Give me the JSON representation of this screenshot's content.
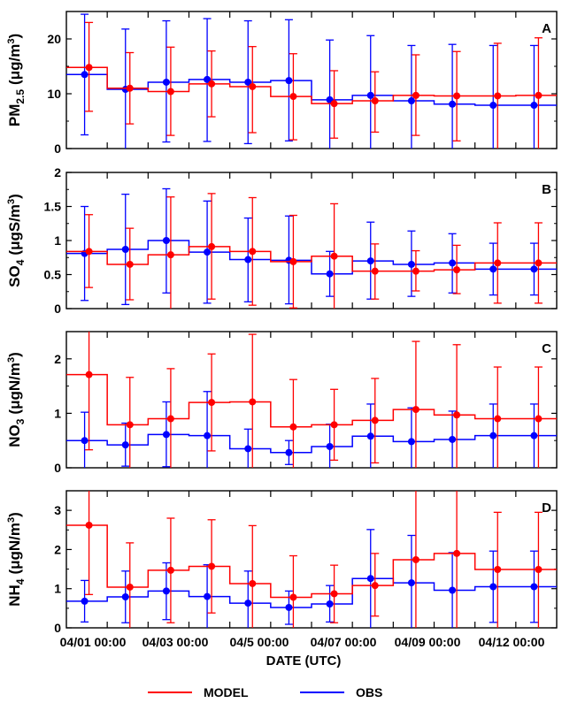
{
  "chart_data": {
    "type": "line",
    "xlabel": "DATE (UTC)",
    "x_tick_labels": [
      "04/01 00:00",
      "04/03 00:00",
      "04/5 00:00",
      "04/07 00:00",
      "04/09 00:00",
      "04/12 00:00"
    ],
    "legend": {
      "position": "bottom-center",
      "entries": [
        "MODEL",
        "OBS"
      ]
    },
    "colors": {
      "MODEL": "#ff0000",
      "OBS": "#0000ff"
    },
    "panels": [
      {
        "letter": "A",
        "ylabel": {
          "main": "PM",
          "sub": "2.5",
          "rest": "(μg/m",
          "sup": "3",
          "end": ")"
        },
        "ylim": [
          0,
          25
        ],
        "yticks": [
          0,
          10,
          20
        ],
        "yticklabels": [
          "0",
          "10",
          "20"
        ],
        "series": [
          {
            "name": "MODEL",
            "values": [
              14.8,
              11.0,
              10.4,
              11.8,
              11.3,
              9.5,
              8.2,
              8.7,
              9.7,
              9.6,
              9.6,
              9.7
            ],
            "low": [
              6.8,
              4.5,
              2.4,
              5.8,
              2.9,
              1.6,
              1.9,
              3.0,
              2.4,
              1.4,
              0.0,
              0.0
            ],
            "high": [
              23.0,
              17.5,
              18.5,
              17.8,
              18.6,
              17.3,
              14.2,
              14.0,
              17.1,
              17.7,
              19.2,
              20.2
            ]
          },
          {
            "name": "OBS",
            "values": [
              13.5,
              10.8,
              12.1,
              12.6,
              12.1,
              12.4,
              8.9,
              9.7,
              8.7,
              8.1,
              7.9,
              7.9
            ],
            "low": [
              2.5,
              0.0,
              1.2,
              1.3,
              0.9,
              1.4,
              0.0,
              0.0,
              0.0,
              0.0,
              0.0,
              0.0
            ],
            "high": [
              24.5,
              21.8,
              23.3,
              23.7,
              23.3,
              23.5,
              19.8,
              20.6,
              18.8,
              19.0,
              18.8,
              18.8
            ]
          }
        ]
      },
      {
        "letter": "B",
        "ylabel": {
          "main": "SO",
          "sub": "4",
          "rest": "(μgS/m",
          "sup": "3",
          "end": ")"
        },
        "ylim": [
          0,
          2
        ],
        "yticks": [
          0,
          0.5,
          1,
          1.5,
          2
        ],
        "yticklabels": [
          "0",
          "0.5",
          "1",
          "1.5",
          "2"
        ],
        "series": [
          {
            "name": "MODEL",
            "values": [
              0.84,
              0.65,
              0.79,
              0.91,
              0.84,
              0.69,
              0.77,
              0.55,
              0.55,
              0.57,
              0.67,
              0.67
            ],
            "low": [
              0.31,
              0.13,
              0.0,
              0.14,
              0.05,
              0.01,
              0.0,
              0.14,
              0.26,
              0.22,
              0.08,
              0.08
            ],
            "high": [
              1.38,
              1.18,
              1.64,
              1.69,
              1.63,
              1.37,
              1.54,
              0.95,
              0.85,
              0.93,
              1.26,
              1.26
            ]
          },
          {
            "name": "OBS",
            "values": [
              0.81,
              0.87,
              1.0,
              0.83,
              0.72,
              0.71,
              0.51,
              0.7,
              0.65,
              0.67,
              0.58,
              0.58
            ],
            "low": [
              0.12,
              0.06,
              0.23,
              0.08,
              0.1,
              0.07,
              0.18,
              0.14,
              0.18,
              0.23,
              0.2,
              0.2
            ],
            "high": [
              1.5,
              1.68,
              1.76,
              1.58,
              1.33,
              1.36,
              0.84,
              1.27,
              1.14,
              1.1,
              0.96,
              0.96
            ]
          }
        ]
      },
      {
        "letter": "C",
        "ylabel": {
          "main": "NO",
          "sub": "3",
          "rest": "(μgN/m",
          "sup": "3",
          "end": ")"
        },
        "ylim": [
          0,
          2.5
        ],
        "yticks": [
          0,
          1,
          2
        ],
        "yticklabels": [
          "0",
          "1",
          "2"
        ],
        "series": [
          {
            "name": "MODEL",
            "values": [
              1.71,
              0.79,
              0.9,
              1.2,
              1.21,
              0.75,
              0.79,
              0.87,
              1.07,
              0.97,
              0.9,
              0.9
            ],
            "low": [
              0.33,
              0.0,
              0.0,
              0.31,
              0.0,
              0.0,
              0.14,
              0.09,
              0.0,
              0.0,
              0.0,
              0.0
            ],
            "high": [
              2.5,
              1.66,
              1.82,
              2.09,
              2.45,
              1.62,
              1.44,
              1.64,
              2.32,
              2.26,
              1.85,
              1.85
            ]
          },
          {
            "name": "OBS",
            "values": [
              0.5,
              0.42,
              0.61,
              0.59,
              0.35,
              0.28,
              0.39,
              0.58,
              0.48,
              0.52,
              0.59,
              0.59
            ],
            "low": [
              0.0,
              0.03,
              0.02,
              0.0,
              0.0,
              0.06,
              0.0,
              0.0,
              0.0,
              0.0,
              0.0,
              0.0
            ],
            "high": [
              1.02,
              0.82,
              1.21,
              1.4,
              0.71,
              0.5,
              0.8,
              1.17,
              1.1,
              1.04,
              1.17,
              1.17
            ]
          }
        ]
      },
      {
        "letter": "D",
        "ylabel": {
          "main": "NH",
          "sub": "4",
          "rest": "(μgN/m",
          "sup": "3",
          "end": ")"
        },
        "ylim": [
          0,
          3.5
        ],
        "yticks": [
          0,
          1,
          2,
          3
        ],
        "yticklabels": [
          "0",
          "1",
          "2",
          "3"
        ],
        "series": [
          {
            "name": "MODEL",
            "values": [
              2.62,
              1.04,
              1.47,
              1.57,
              1.13,
              0.78,
              0.87,
              1.08,
              1.74,
              1.9,
              1.49,
              1.49
            ],
            "low": [
              0.85,
              0.0,
              0.13,
              0.38,
              0.0,
              0.0,
              0.13,
              0.3,
              0.0,
              0.0,
              0.0,
              0.0
            ],
            "high": [
              3.5,
              2.17,
              2.8,
              2.76,
              2.61,
              1.84,
              1.6,
              1.9,
              3.5,
              3.5,
              2.95,
              2.95
            ]
          },
          {
            "name": "OBS",
            "values": [
              0.68,
              0.79,
              0.94,
              0.8,
              0.63,
              0.52,
              0.61,
              1.26,
              1.15,
              0.96,
              1.05,
              1.05
            ],
            "low": [
              0.15,
              0.13,
              0.21,
              0.0,
              0.0,
              0.09,
              0.15,
              0.0,
              0.0,
              0.0,
              0.14,
              0.14
            ],
            "high": [
              1.21,
              1.45,
              1.66,
              1.61,
              1.45,
              0.94,
              1.08,
              2.51,
              2.36,
              1.92,
              1.96,
              1.96
            ]
          }
        ]
      }
    ]
  }
}
